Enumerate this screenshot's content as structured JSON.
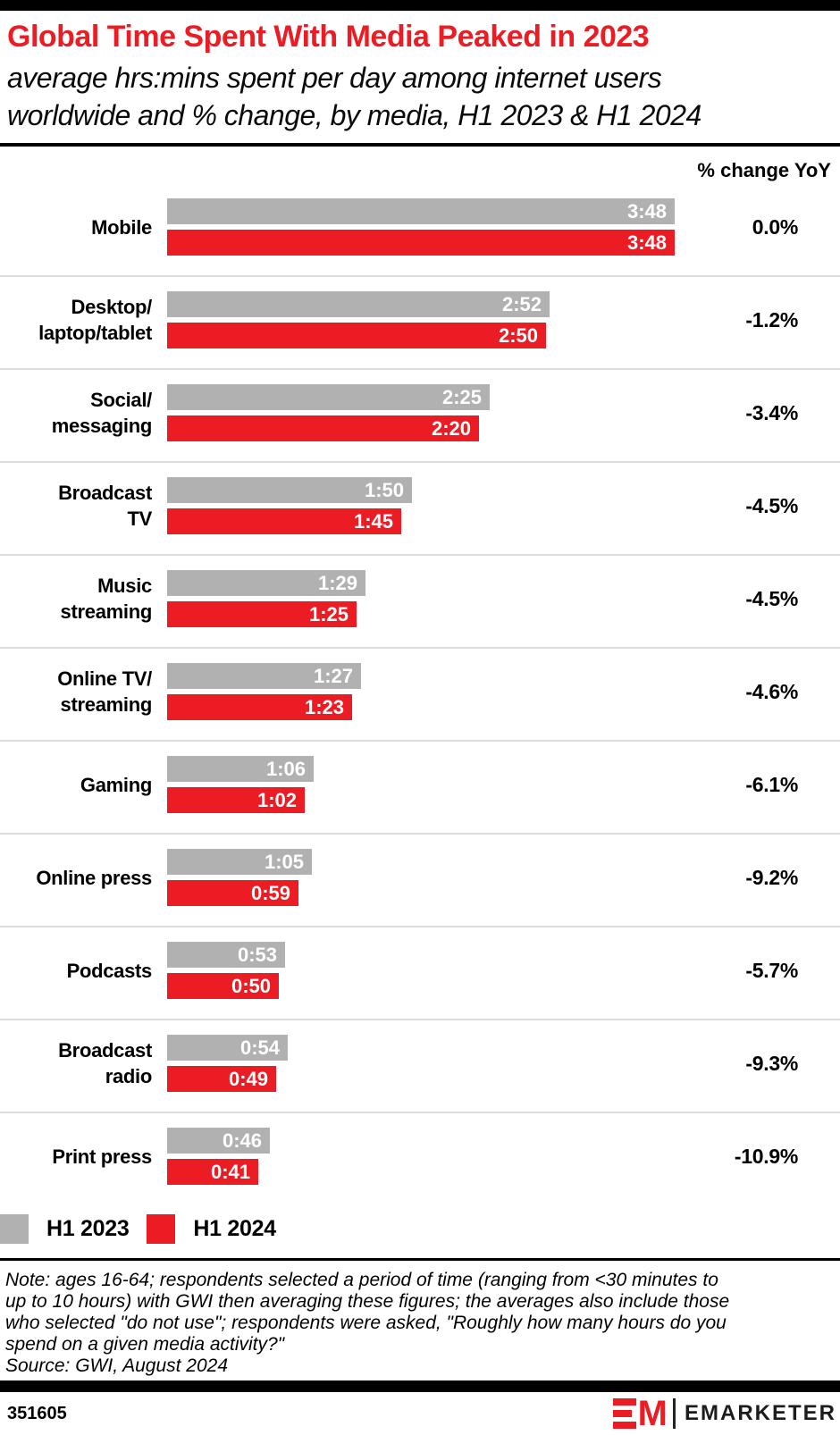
{
  "header": {
    "title": "Global Time Spent With Media Peaked in 2023",
    "subtitle_line1": "average hrs:mins spent per day among internet users",
    "subtitle_line2": "worldwide and % change, by media, H1 2023 & H1 2024",
    "column_header": "% change YoY"
  },
  "chart_data": {
    "type": "bar",
    "orientation": "horizontal",
    "title": "Global Time Spent With Media Peaked in 2023",
    "unit": "average hrs:mins spent per day",
    "categories": [
      [
        "Mobile"
      ],
      [
        "Desktop/",
        "laptop/tablet"
      ],
      [
        "Social/",
        "messaging"
      ],
      [
        "Broadcast",
        "TV"
      ],
      [
        "Music",
        "streaming"
      ],
      [
        "Online TV/",
        "streaming"
      ],
      [
        "Gaming"
      ],
      [
        "Online press"
      ],
      [
        "Podcasts"
      ],
      [
        "Broadcast",
        "radio"
      ],
      [
        "Print press"
      ]
    ],
    "series": [
      {
        "name": "H1 2023",
        "color": "#b1b1b1",
        "values_hhmm": [
          "3:48",
          "2:52",
          "2:25",
          "1:50",
          "1:29",
          "1:27",
          "1:06",
          "1:05",
          "0:53",
          "0:54",
          "0:46"
        ],
        "values_minutes": [
          228,
          172,
          145,
          110,
          89,
          87,
          66,
          65,
          53,
          54,
          46
        ]
      },
      {
        "name": "H1 2024",
        "color": "#ec1c24",
        "values_hhmm": [
          "3:48",
          "2:50",
          "2:20",
          "1:45",
          "1:25",
          "1:23",
          "1:02",
          "0:59",
          "0:50",
          "0:49",
          "0:41"
        ],
        "values_minutes": [
          228,
          170,
          140,
          105,
          85,
          83,
          62,
          59,
          50,
          49,
          41
        ]
      }
    ],
    "pct_change_yoy": [
      "0.0%",
      "-1.2%",
      "-3.4%",
      "-4.5%",
      "-4.5%",
      "-4.6%",
      "-6.1%",
      "-9.2%",
      "-5.7%",
      "-9.3%",
      "-10.9%"
    ],
    "x_axis_max_minutes": 228,
    "grid": false,
    "legend_position": "bottom"
  },
  "legend": [
    {
      "label": "H1 2023",
      "color": "#b1b1b1"
    },
    {
      "label": "H1 2024",
      "color": "#ec1c24"
    }
  ],
  "note": {
    "lines": [
      "Note: ages 16-64; respondents selected a period of time (ranging from <30 minutes to",
      "up to 10 hours) with GWI then averaging these figures; the averages also include those",
      "who selected \"do not use\"; respondents were asked, \"Roughly how many hours do you",
      "spend on a given media activity?\""
    ],
    "source": "Source: GWI, August 2024"
  },
  "footer": {
    "chart_id": "351605",
    "brand_mark": "M",
    "brand_name": "EMARKETER"
  }
}
